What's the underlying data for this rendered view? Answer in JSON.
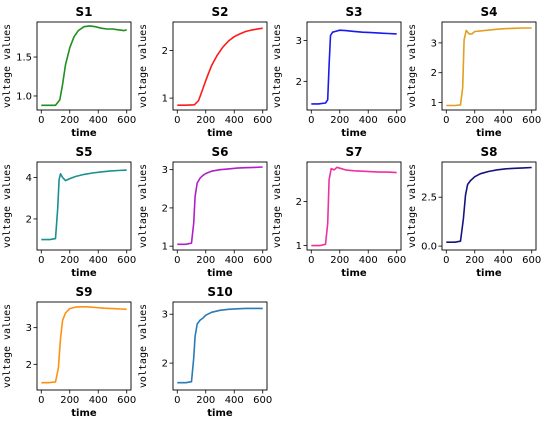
{
  "chart_data": [
    {
      "type": "line",
      "title": "S1",
      "xlabel": "time",
      "ylabel": "voltage values",
      "xlim": [
        -30,
        630
      ],
      "ylim": [
        0.82,
        1.95
      ],
      "xticks": [
        0,
        200,
        400,
        600
      ],
      "yticks": [
        1.0,
        1.5
      ],
      "ytick_labels": [
        "1.0",
        "1.5"
      ],
      "color": "#1f8f1f",
      "x": [
        0,
        60,
        100,
        130,
        150,
        170,
        200,
        230,
        260,
        300,
        340,
        380,
        420,
        460,
        500,
        540,
        580,
        600
      ],
      "y": [
        0.88,
        0.88,
        0.88,
        0.95,
        1.15,
        1.4,
        1.62,
        1.76,
        1.84,
        1.89,
        1.9,
        1.89,
        1.87,
        1.86,
        1.86,
        1.85,
        1.84,
        1.85
      ]
    },
    {
      "type": "line",
      "title": "S2",
      "xlabel": "time",
      "ylabel": "voltage values",
      "xlim": [
        -30,
        630
      ],
      "ylim": [
        0.75,
        2.6
      ],
      "xticks": [
        0,
        200,
        400,
        600
      ],
      "yticks": [
        1,
        2
      ],
      "ytick_labels": [
        "1",
        "2"
      ],
      "color": "#ff1a1a",
      "x": [
        0,
        60,
        120,
        150,
        180,
        210,
        240,
        280,
        320,
        360,
        400,
        440,
        480,
        520,
        560,
        600
      ],
      "y": [
        0.85,
        0.85,
        0.86,
        0.95,
        1.2,
        1.45,
        1.68,
        1.9,
        2.07,
        2.2,
        2.29,
        2.35,
        2.4,
        2.43,
        2.45,
        2.47
      ]
    },
    {
      "type": "line",
      "title": "S3",
      "xlabel": "time",
      "ylabel": "voltage values",
      "xlim": [
        -30,
        630
      ],
      "ylim": [
        1.3,
        3.45
      ],
      "xticks": [
        0,
        200,
        400,
        600
      ],
      "yticks": [
        2,
        3
      ],
      "ytick_labels": [
        "2",
        "3"
      ],
      "color": "#1a1aee",
      "x": [
        0,
        50,
        100,
        115,
        125,
        135,
        150,
        170,
        200,
        240,
        300,
        360,
        420,
        480,
        540,
        600
      ],
      "y": [
        1.45,
        1.45,
        1.47,
        1.55,
        2.4,
        3.12,
        3.2,
        3.22,
        3.25,
        3.24,
        3.22,
        3.2,
        3.19,
        3.18,
        3.17,
        3.16
      ]
    },
    {
      "type": "line",
      "title": "S4",
      "xlabel": "time",
      "ylabel": "voltage values",
      "xlim": [
        -30,
        630
      ],
      "ylim": [
        0.75,
        3.7
      ],
      "xticks": [
        0,
        200,
        400,
        600
      ],
      "yticks": [
        1,
        2,
        3
      ],
      "ytick_labels": [
        "1",
        "2",
        "3"
      ],
      "color": "#e0a020",
      "x": [
        0,
        60,
        100,
        115,
        125,
        140,
        160,
        180,
        200,
        240,
        300,
        360,
        420,
        480,
        540,
        600
      ],
      "y": [
        0.9,
        0.9,
        0.92,
        1.5,
        3.1,
        3.42,
        3.3,
        3.3,
        3.38,
        3.4,
        3.43,
        3.46,
        3.48,
        3.49,
        3.5,
        3.5
      ]
    },
    {
      "type": "line",
      "title": "S5",
      "xlabel": "time",
      "ylabel": "voltage values",
      "xlim": [
        -30,
        630
      ],
      "ylim": [
        0.5,
        4.75
      ],
      "xticks": [
        0,
        200,
        400,
        600
      ],
      "yticks": [
        2,
        4
      ],
      "ytick_labels": [
        "2",
        "4"
      ],
      "color": "#1a9090",
      "x": [
        0,
        60,
        100,
        115,
        125,
        135,
        150,
        170,
        200,
        240,
        300,
        360,
        420,
        480,
        540,
        600
      ],
      "y": [
        1.0,
        1.0,
        1.05,
        2.5,
        3.9,
        4.18,
        4.0,
        3.85,
        3.95,
        4.05,
        4.15,
        4.22,
        4.27,
        4.31,
        4.34,
        4.36
      ]
    },
    {
      "type": "line",
      "title": "S6",
      "xlabel": "time",
      "ylabel": "voltage values",
      "xlim": [
        -30,
        630
      ],
      "ylim": [
        0.9,
        3.2
      ],
      "xticks": [
        0,
        200,
        400,
        600
      ],
      "yticks": [
        1,
        2,
        3
      ],
      "ytick_labels": [
        "1",
        "2",
        "3"
      ],
      "color": "#b020c8",
      "x": [
        0,
        60,
        100,
        115,
        125,
        140,
        160,
        180,
        200,
        240,
        300,
        360,
        420,
        480,
        540,
        600
      ],
      "y": [
        1.05,
        1.05,
        1.08,
        1.6,
        2.3,
        2.65,
        2.78,
        2.85,
        2.9,
        2.96,
        3.0,
        3.02,
        3.04,
        3.05,
        3.06,
        3.07
      ]
    },
    {
      "type": "line",
      "title": "S7",
      "xlabel": "time",
      "ylabel": "voltage values",
      "xlim": [
        -30,
        630
      ],
      "ylim": [
        0.9,
        2.9
      ],
      "xticks": [
        0,
        200,
        400,
        600
      ],
      "yticks": [
        1,
        2
      ],
      "ytick_labels": [
        "1",
        "2"
      ],
      "color": "#ee30a0",
      "x": [
        0,
        60,
        100,
        115,
        125,
        140,
        160,
        180,
        200,
        240,
        300,
        360,
        420,
        480,
        540,
        600
      ],
      "y": [
        1.0,
        1.0,
        1.03,
        1.5,
        2.5,
        2.75,
        2.72,
        2.78,
        2.76,
        2.72,
        2.7,
        2.69,
        2.68,
        2.67,
        2.67,
        2.66
      ]
    },
    {
      "type": "line",
      "title": "S8",
      "xlabel": "time",
      "ylabel": "voltage values",
      "xlim": [
        -30,
        630
      ],
      "ylim": [
        -0.2,
        4.3
      ],
      "xticks": [
        0,
        200,
        400,
        600
      ],
      "yticks": [
        0.0,
        2.5
      ],
      "ytick_labels": [
        "0.0",
        "2.5"
      ],
      "color": "#141480",
      "x": [
        0,
        60,
        100,
        120,
        135,
        150,
        170,
        200,
        240,
        300,
        360,
        420,
        480,
        540,
        600
      ],
      "y": [
        0.2,
        0.2,
        0.25,
        1.4,
        2.6,
        3.15,
        3.35,
        3.55,
        3.7,
        3.82,
        3.9,
        3.95,
        3.98,
        4.0,
        4.02
      ]
    },
    {
      "type": "line",
      "title": "S9",
      "xlabel": "time",
      "ylabel": "voltage values",
      "xlim": [
        -30,
        630
      ],
      "ylim": [
        1.3,
        3.7
      ],
      "xticks": [
        0,
        200,
        400,
        600
      ],
      "yticks": [
        2,
        3
      ],
      "ytick_labels": [
        "2",
        "3"
      ],
      "color": "#ff9010",
      "x": [
        0,
        50,
        100,
        120,
        135,
        150,
        170,
        200,
        240,
        280,
        320,
        380,
        440,
        500,
        560,
        600
      ],
      "y": [
        1.5,
        1.5,
        1.52,
        1.9,
        2.7,
        3.2,
        3.4,
        3.52,
        3.56,
        3.57,
        3.57,
        3.55,
        3.53,
        3.52,
        3.51,
        3.5
      ]
    },
    {
      "type": "line",
      "title": "S10",
      "xlabel": "time",
      "ylabel": "voltage values",
      "xlim": [
        -30,
        630
      ],
      "ylim": [
        1.45,
        3.25
      ],
      "xticks": [
        0,
        200,
        400,
        600
      ],
      "yticks": [
        2,
        3
      ],
      "ytick_labels": [
        "2",
        "3"
      ],
      "color": "#2a7ab8",
      "x": [
        0,
        60,
        100,
        115,
        125,
        140,
        160,
        180,
        200,
        240,
        300,
        360,
        420,
        480,
        540,
        600
      ],
      "y": [
        1.6,
        1.6,
        1.62,
        2.1,
        2.55,
        2.8,
        2.88,
        2.92,
        2.98,
        3.04,
        3.08,
        3.1,
        3.11,
        3.12,
        3.12,
        3.12
      ]
    }
  ]
}
